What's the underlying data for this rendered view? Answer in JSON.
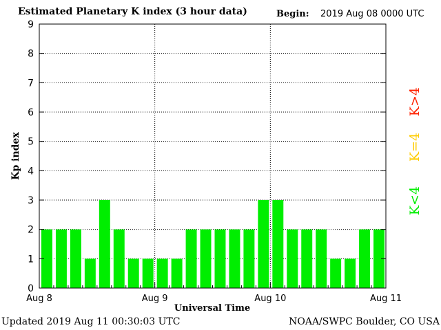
{
  "header": {
    "title": "Estimated Planetary K index (3 hour data)",
    "begin_label": "Begin:",
    "begin_value": "2019 Aug 08 0000 UTC"
  },
  "footer": {
    "updated": "Updated 2019 Aug 11 00:30:03 UTC",
    "source": "NOAA/SWPC Boulder, CO USA"
  },
  "legend": {
    "items": [
      {
        "text": "K<4",
        "color": "#00ee00"
      },
      {
        "text": "K=4",
        "color": "#ffcc00"
      },
      {
        "text": "K>4",
        "color": "#ff2200"
      }
    ]
  },
  "chart_data": {
    "type": "bar",
    "title": "Estimated Planetary K index (3 hour data)",
    "xlabel": "Universal Time",
    "ylabel": "Kp index",
    "ylim": [
      0,
      9
    ],
    "yticks": [
      0,
      1,
      2,
      3,
      4,
      5,
      6,
      7,
      8,
      9
    ],
    "xticks": [
      "Aug 8",
      "Aug 9",
      "Aug 10",
      "Aug 11"
    ],
    "interval_hours": 3,
    "values": [
      2,
      2,
      2,
      1,
      3,
      2,
      1,
      1,
      1,
      1,
      2,
      2,
      2,
      2,
      2,
      3,
      3,
      2,
      2,
      2,
      1,
      1,
      2,
      2
    ],
    "bar_color": "#00ee00",
    "grid": true
  }
}
